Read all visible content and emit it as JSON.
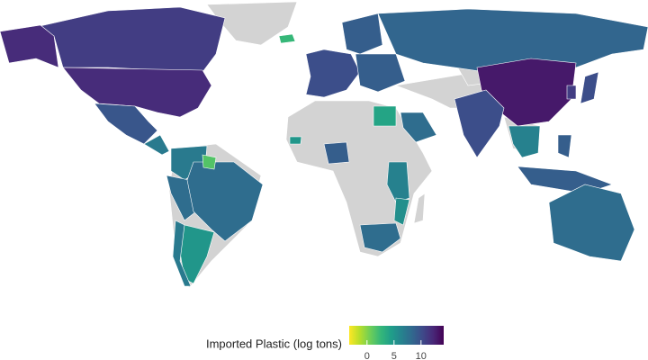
{
  "chart_data": {
    "type": "choropleth",
    "legend_title": "Imported Plastic (log tons)",
    "clim": [
      -3.3,
      14.2
    ],
    "ticks": [
      0,
      5,
      10
    ],
    "values": [
      11,
      12,
      9.5,
      7,
      7,
      8,
      8,
      5,
      1.5,
      7,
      2.5,
      10,
      9,
      9,
      8.5,
      13,
      10,
      10,
      4,
      8,
      9,
      5,
      6.5,
      5.5,
      8,
      6.5,
      9,
      9,
      8,
      11
    ]
  }
}
